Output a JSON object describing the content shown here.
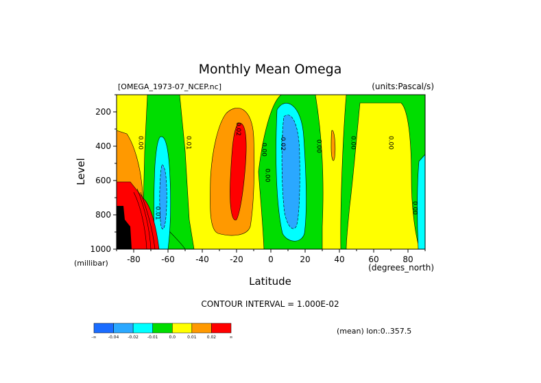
{
  "chart_data": {
    "type": "heatmap",
    "title": "Monthly Mean Omega",
    "subtitle_left": "[OMEGA_1973-07_NCEP.nc]",
    "subtitle_right": "(units:Pascal/s)",
    "xlabel": "Latitude",
    "xunits": "(degrees_north)",
    "ylabel": "Level",
    "yunits": "(millibar)",
    "xlim": [
      -90,
      90
    ],
    "ylim": [
      1000,
      100
    ],
    "y_inverted": true,
    "xticks": [
      "-80",
      "-60",
      "-40",
      "-20",
      "0",
      "20",
      "40",
      "60",
      "80"
    ],
    "yticks": [
      "200",
      "400",
      "600",
      "800",
      "1000"
    ],
    "contour_interval_text": "CONTOUR INTERVAL = 1.000E-02",
    "mean_text": "(mean) lon:0..357.5",
    "colorbar": {
      "levels": [
        "-0.04",
        "-0.02",
        "-0.01",
        "0.0",
        "0.01",
        "0.02"
      ],
      "ends": [
        "-∞",
        "∞"
      ],
      "colors": [
        "#1a6cff",
        "#2aa8ff",
        "#00ffff",
        "#00dd00",
        "#ffff00",
        "#ff9900",
        "#ff0000"
      ]
    },
    "contour_labels": [
      {
        "text": "0.00",
        "lat": -77,
        "p": 380
      },
      {
        "text": "0.01",
        "lat": -49,
        "p": 380
      },
      {
        "text": "0.02",
        "lat": -20,
        "p": 300
      },
      {
        "text": "0.00",
        "lat": -5,
        "p": 420
      },
      {
        "text": "0.00",
        "lat": -3,
        "p": 570
      },
      {
        "text": "-0.02",
        "lat": 6,
        "p": 380
      },
      {
        "text": "0.00",
        "lat": 27,
        "p": 400
      },
      {
        "text": "0.00",
        "lat": 47,
        "p": 380
      },
      {
        "text": "0.00",
        "lat": 69,
        "p": 380
      },
      {
        "text": "0.00",
        "lat": 83,
        "p": 760
      },
      {
        "text": "0.01",
        "lat": -67,
        "p": 790
      }
    ]
  }
}
